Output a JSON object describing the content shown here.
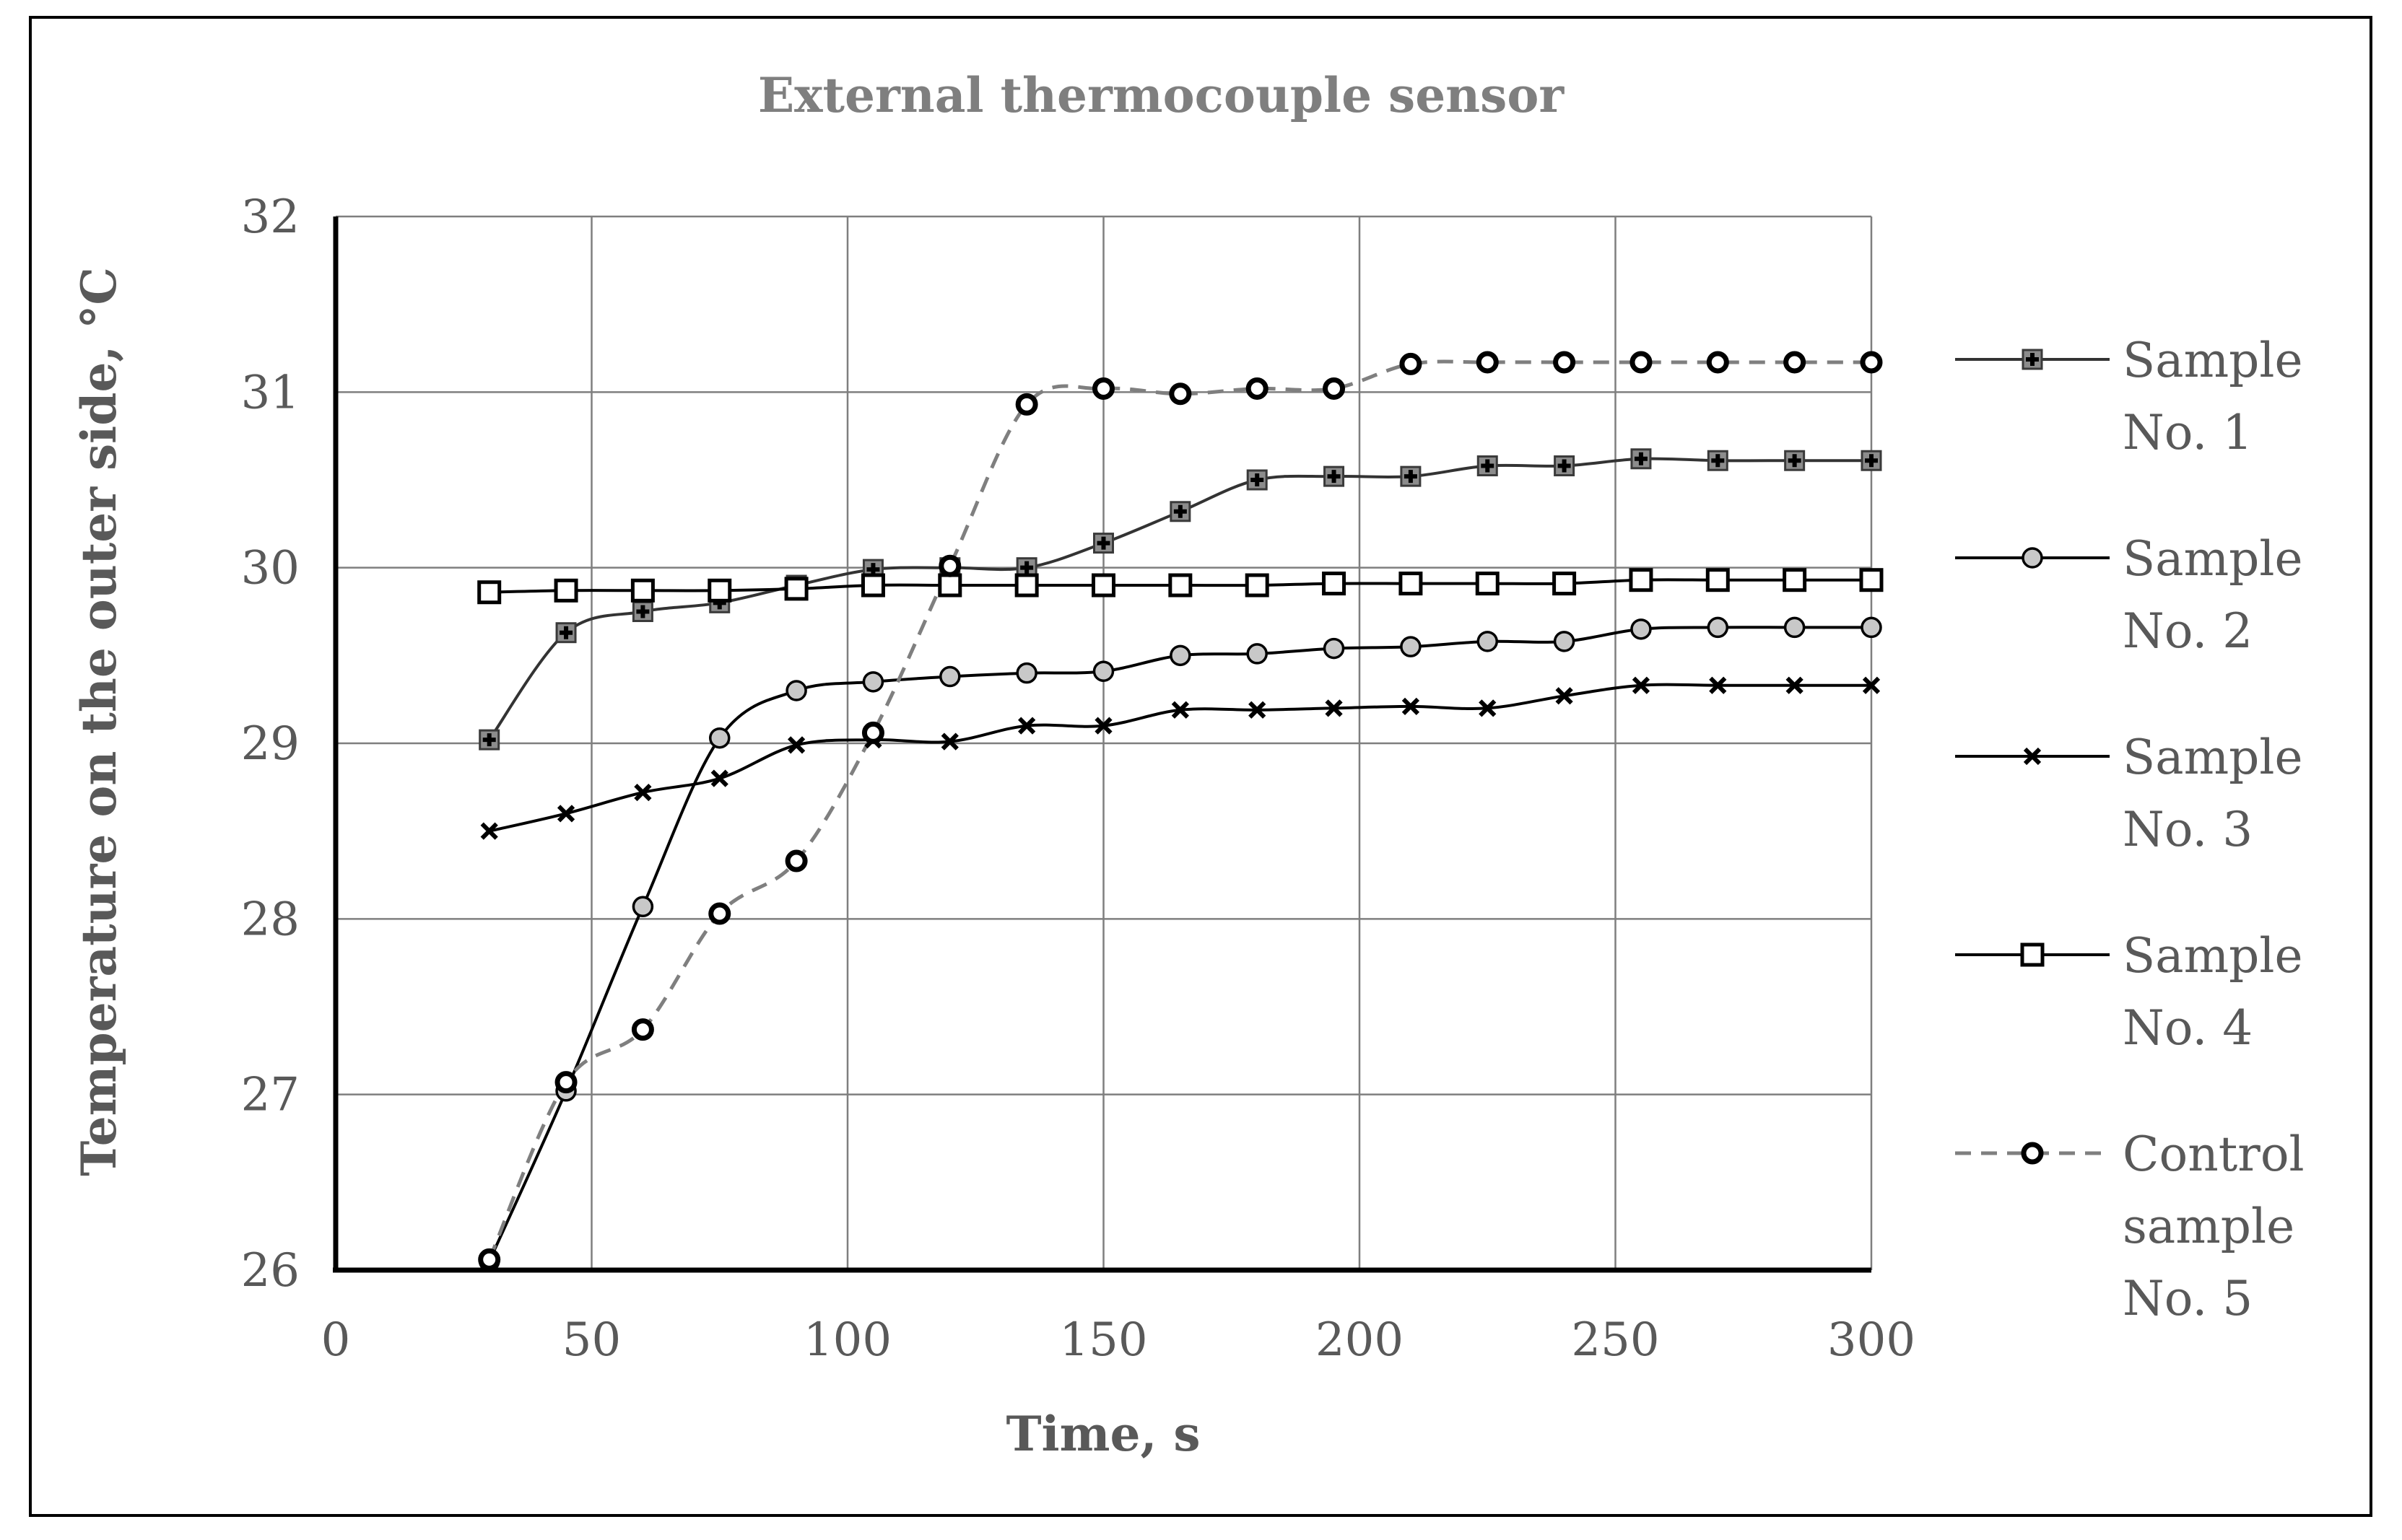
{
  "chart_data": {
    "type": "line",
    "title": "External thermocouple sensor",
    "xlabel": "Time, s",
    "ylabel": "Temperature on the outer side, °C",
    "xlim": [
      0,
      300
    ],
    "ylim": [
      26,
      32
    ],
    "x_ticks": [
      0,
      50,
      100,
      150,
      200,
      250,
      300
    ],
    "y_ticks": [
      26,
      27,
      28,
      29,
      30,
      31,
      32
    ],
    "grid": true,
    "legend_position": "right",
    "x": [
      30,
      45,
      60,
      75,
      90,
      105,
      120,
      135,
      150,
      165,
      180,
      195,
      210,
      225,
      240,
      255,
      270,
      285,
      300
    ],
    "series": [
      {
        "name": "Sample No. 1",
        "legend_lines": [
          "Sample",
          "No. 1"
        ],
        "marker": "filled-square-plus",
        "dashed": false,
        "color": "#333333",
        "values": [
          29.02,
          29.63,
          29.75,
          29.8,
          29.9,
          29.99,
          30.0,
          30.0,
          30.14,
          30.32,
          30.5,
          30.52,
          30.52,
          30.58,
          30.58,
          30.62,
          30.61,
          30.61,
          30.61
        ]
      },
      {
        "name": "Sample No. 2",
        "legend_lines": [
          "Sample",
          "No. 2"
        ],
        "marker": "gray-circle",
        "dashed": false,
        "color": "#000000",
        "values": [
          26.05,
          27.02,
          28.07,
          29.03,
          29.3,
          29.35,
          29.38,
          29.4,
          29.41,
          29.5,
          29.51,
          29.54,
          29.55,
          29.58,
          29.58,
          29.65,
          29.66,
          29.66,
          29.66
        ]
      },
      {
        "name": "Sample No. 3",
        "legend_lines": [
          "Sample",
          "No. 3"
        ],
        "marker": "x-cross",
        "dashed": false,
        "color": "#000000",
        "values": [
          28.5,
          28.6,
          28.72,
          28.8,
          28.99,
          29.02,
          29.01,
          29.1,
          29.1,
          29.19,
          29.19,
          29.2,
          29.21,
          29.2,
          29.27,
          29.33,
          29.33,
          29.33,
          29.33
        ]
      },
      {
        "name": "Sample No. 4",
        "legend_lines": [
          "Sample",
          "No. 4"
        ],
        "marker": "open-square",
        "dashed": false,
        "color": "#000000",
        "values": [
          29.86,
          29.87,
          29.87,
          29.87,
          29.88,
          29.9,
          29.9,
          29.9,
          29.9,
          29.9,
          29.9,
          29.91,
          29.91,
          29.91,
          29.91,
          29.93,
          29.93,
          29.93,
          29.93
        ]
      },
      {
        "name": "Control sample No. 5",
        "legend_lines": [
          "Control",
          "sample",
          "No. 5"
        ],
        "marker": "bold-open-circle",
        "dashed": true,
        "color": "#7f7f7f",
        "values": [
          26.06,
          27.07,
          27.37,
          28.03,
          28.33,
          29.06,
          30.01,
          30.93,
          31.02,
          30.99,
          31.02,
          31.02,
          31.16,
          31.17,
          31.17,
          31.17,
          31.17,
          31.17,
          31.17
        ]
      }
    ]
  }
}
